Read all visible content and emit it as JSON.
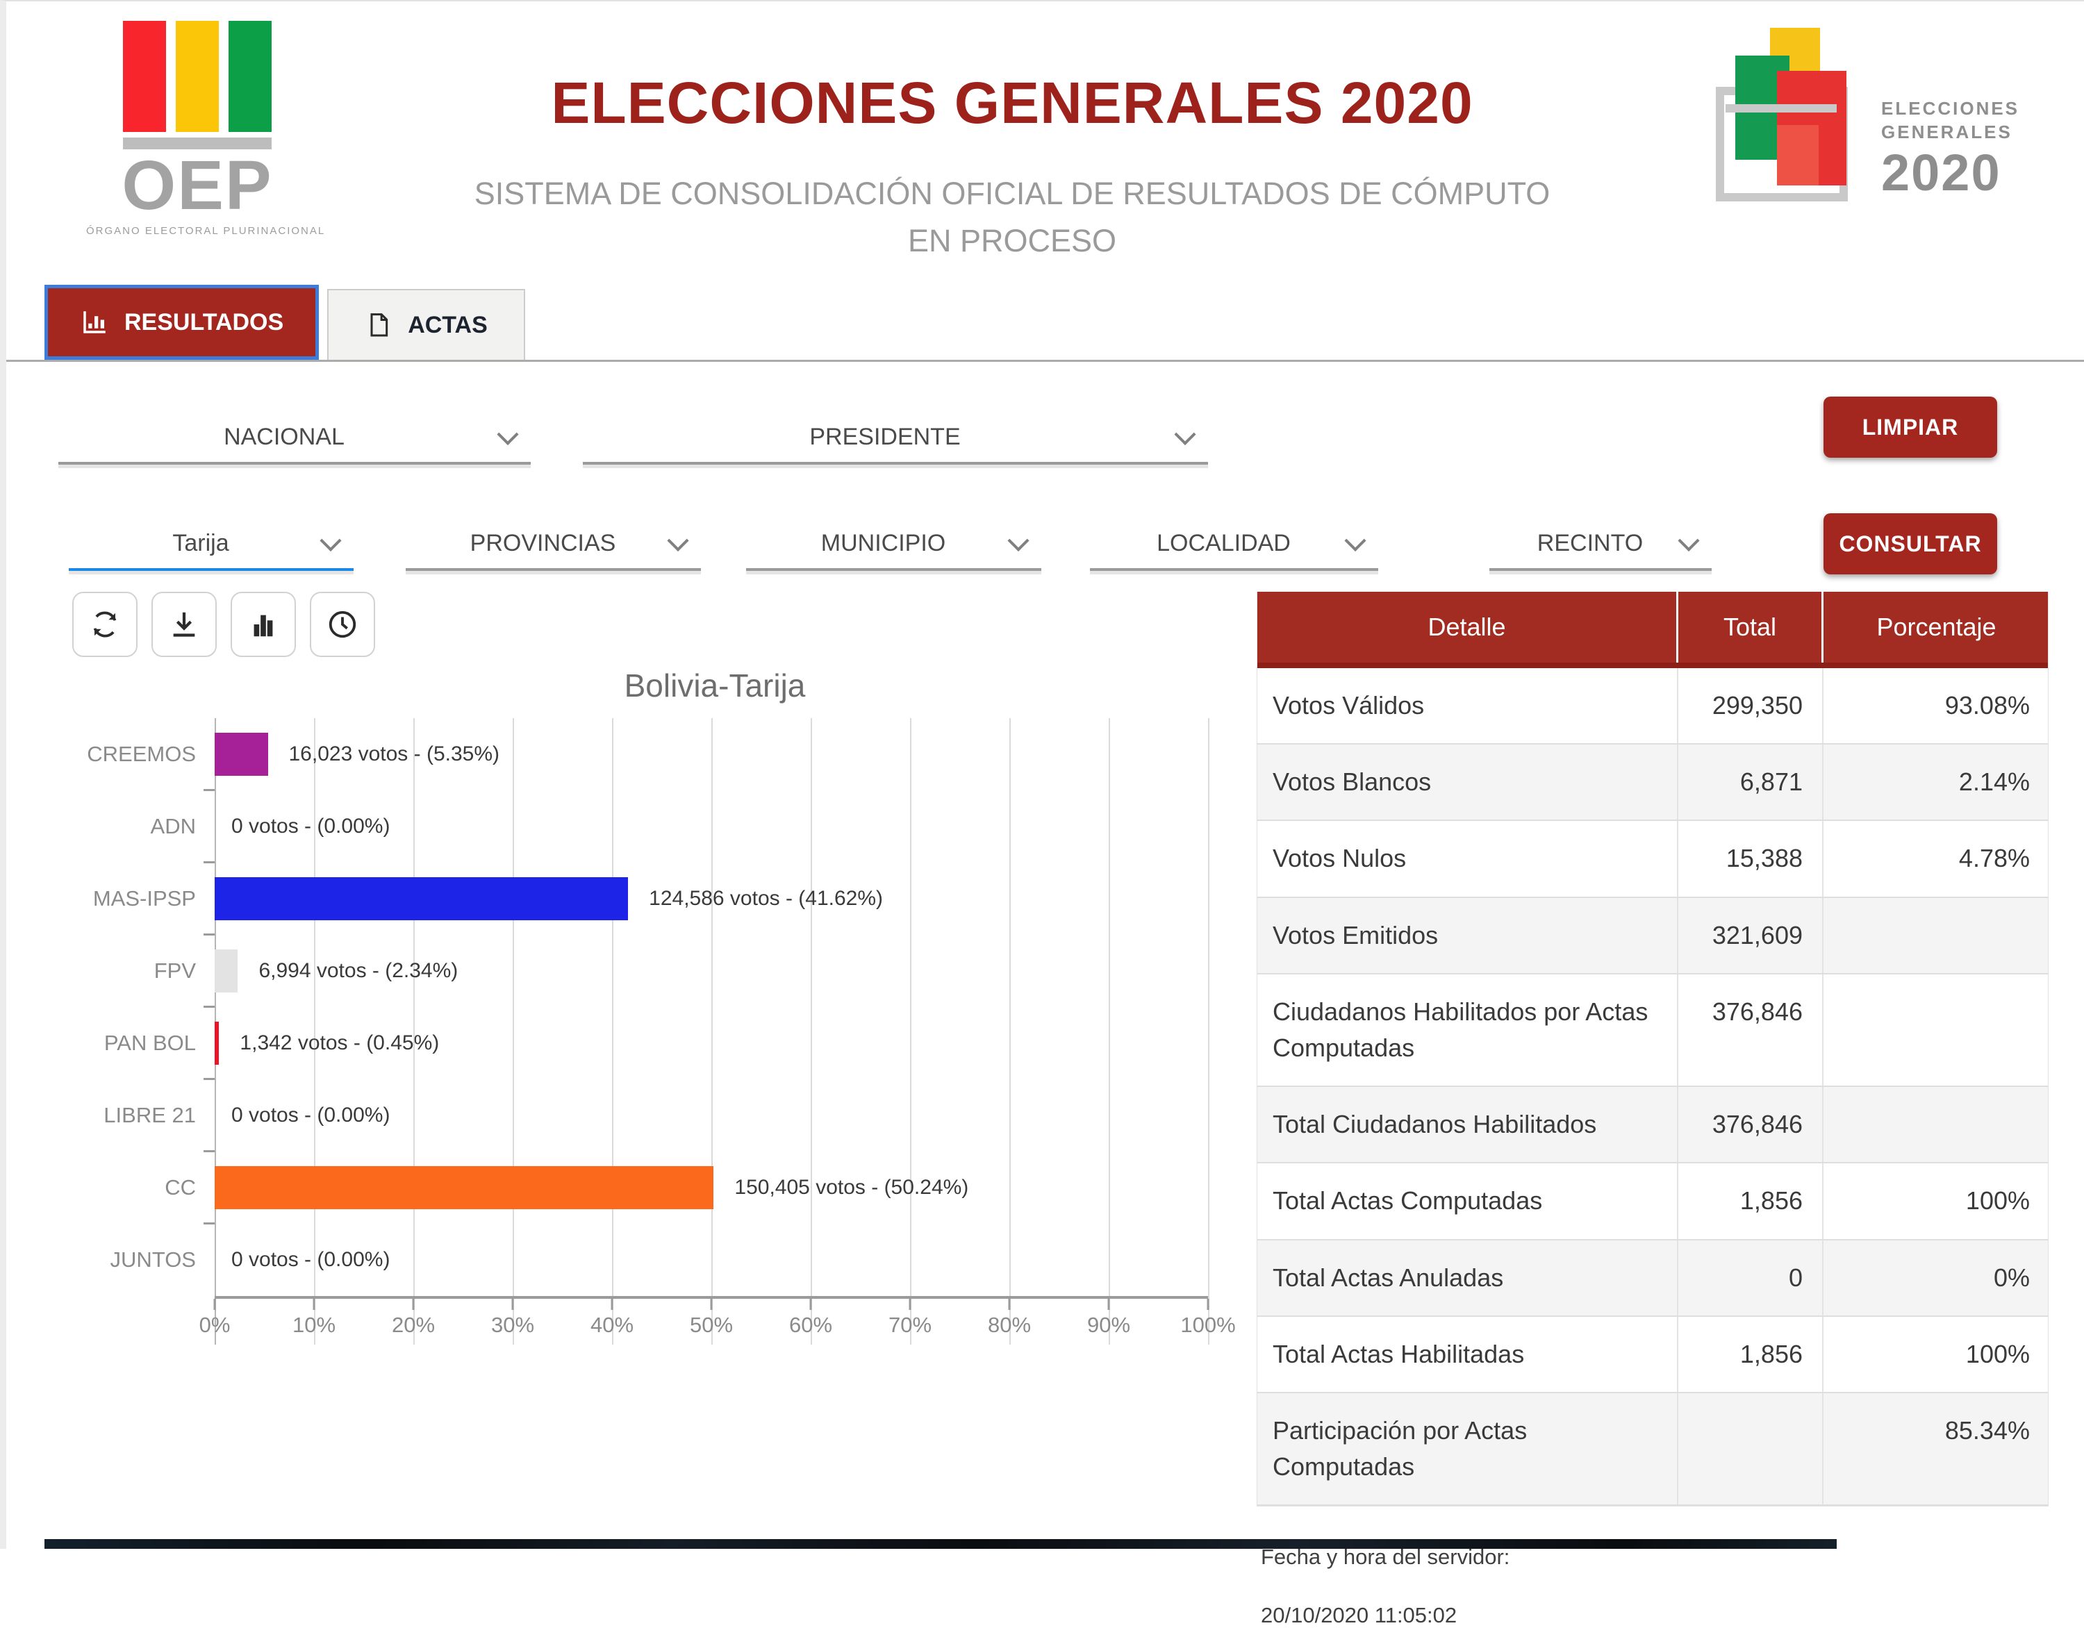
{
  "header": {
    "oep_word": "OEP",
    "oep_caption": "ÓRGANO ELECTORAL PLURINACIONAL",
    "title": "ELECCIONES GENERALES 2020",
    "subtitle_line1": "SISTEMA DE CONSOLIDACIÓN OFICIAL DE RESULTADOS DE CÓMPUTO",
    "subtitle_line2": "EN PROCESO",
    "logo2020": {
      "line1": "ELECCIONES",
      "line2": "GENERALES",
      "year": "2020"
    }
  },
  "tabs": [
    {
      "label": "RESULTADOS",
      "active": true,
      "icon": "bar-chart-icon"
    },
    {
      "label": "ACTAS",
      "active": false,
      "icon": "document-icon"
    }
  ],
  "filters": {
    "row1": [
      {
        "value": "NACIONAL"
      },
      {
        "value": "PRESIDENTE"
      }
    ],
    "row2": [
      {
        "value": "Tarija",
        "selected": true
      },
      {
        "value": "PROVINCIAS",
        "selected": false
      },
      {
        "value": "MUNICIPIO",
        "selected": false
      },
      {
        "value": "LOCALIDAD",
        "selected": false
      },
      {
        "value": "RECINTO",
        "selected": false
      }
    ]
  },
  "buttons": {
    "limpiar": "LIMPIAR",
    "consultar": "CONSULTAR"
  },
  "toolbar": {
    "icons": [
      "refresh-icon",
      "download-icon",
      "bar-chart-icon",
      "history-clock-icon"
    ]
  },
  "chart_data": {
    "type": "bar",
    "orientation": "horizontal",
    "title": "Bolivia-Tarija",
    "categories": [
      "CREEMOS",
      "ADN",
      "MAS-IPSP",
      "FPV",
      "PAN BOL",
      "LIBRE 21",
      "CC",
      "JUNTOS"
    ],
    "votes": [
      16023,
      0,
      124586,
      6994,
      1342,
      0,
      150405,
      0
    ],
    "values_pct": [
      5.35,
      0.0,
      41.62,
      2.34,
      0.45,
      0.0,
      50.24,
      0.0
    ],
    "bar_labels": [
      "16,023 votos - (5.35%)",
      "0 votos - (0.00%)",
      "124,586 votos - (41.62%)",
      "6,994 votos - (2.34%)",
      "1,342 votos - (0.45%)",
      "0 votos - (0.00%)",
      "150,405 votos - (50.24%)",
      "0 votos - (0.00%)"
    ],
    "bar_colors": [
      "#a62198",
      "",
      "#1d24e8",
      "#e3e3e3",
      "#ef1329",
      "",
      "#fb6a1c",
      ""
    ],
    "xlim": [
      0,
      100
    ],
    "x_ticks": [
      "0%",
      "10%",
      "20%",
      "30%",
      "40%",
      "50%",
      "60%",
      "70%",
      "80%",
      "90%",
      "100%"
    ],
    "grid": true,
    "legend": "none"
  },
  "table": {
    "headers": [
      "Detalle",
      "Total",
      "Porcentaje"
    ],
    "rows": [
      {
        "label": "Votos Válidos",
        "total": "299,350",
        "pct": "93.08%"
      },
      {
        "label": "Votos Blancos",
        "total": "6,871",
        "pct": "2.14%"
      },
      {
        "label": "Votos Nulos",
        "total": "15,388",
        "pct": "4.78%"
      },
      {
        "label": "Votos Emitidos",
        "total": "321,609",
        "pct": ""
      },
      {
        "label": "Ciudadanos Habilitados por Actas Computadas",
        "total": "376,846",
        "pct": ""
      },
      {
        "label": "Total Ciudadanos Habilitados",
        "total": "376,846",
        "pct": ""
      },
      {
        "label": "Total Actas Computadas",
        "total": "1,856",
        "pct": "100%"
      },
      {
        "label": "Total Actas Anuladas",
        "total": "0",
        "pct": "0%"
      },
      {
        "label": "Total Actas Habilitadas",
        "total": "1,856",
        "pct": "100%"
      },
      {
        "label": "Participación por Actas Computadas",
        "total": "",
        "pct": "85.34%"
      }
    ]
  },
  "footer": {
    "label": "Fecha y hora del servidor:",
    "datetime": "20/10/2020 11:05:02"
  },
  "colors": {
    "primary_red": "#9d221c",
    "button_red": "#a3271f",
    "table_header_bg": "#a22c21",
    "active_tab_border": "#3c7dd9",
    "selected_underline": "#1f88e5",
    "oep_red": "#f8252c",
    "oep_yellow": "#fcc608",
    "oep_green": "#0d9e48"
  }
}
